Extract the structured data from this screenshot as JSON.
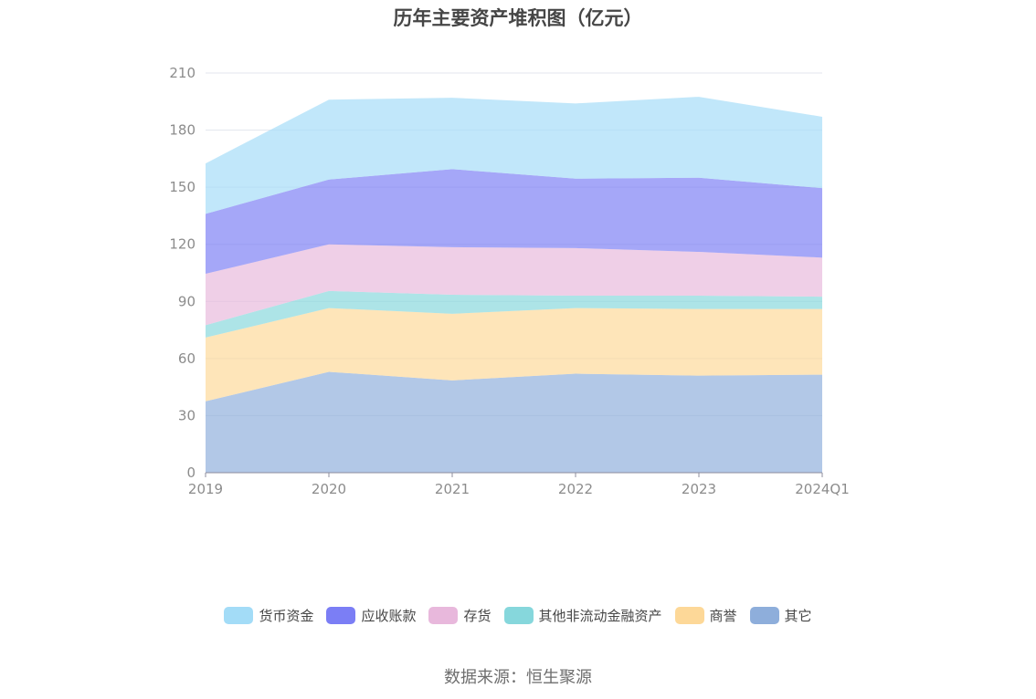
{
  "chart_data": {
    "type": "area",
    "stacked": true,
    "title": "历年主要资产堆积图（亿元）",
    "source": "数据来源：恒生聚源",
    "categories": [
      "2019",
      "2020",
      "2021",
      "2022",
      "2023",
      "2024Q1"
    ],
    "ylim": [
      0,
      210
    ],
    "yticks": [
      0,
      30,
      60,
      90,
      120,
      150,
      180,
      210
    ],
    "grid": true,
    "legend_position": "bottom",
    "series": [
      {
        "name": "其它",
        "color": "#8eaedb",
        "values": [
          37.5,
          53,
          48.5,
          52,
          51,
          51.5
        ]
      },
      {
        "name": "商誉",
        "color": "#fdd898",
        "values": [
          33.5,
          33.5,
          35,
          34.5,
          35,
          34.5
        ]
      },
      {
        "name": "其他非流动金融资产",
        "color": "#86d7dc",
        "values": [
          6.5,
          9,
          10,
          6.5,
          7,
          6.5
        ]
      },
      {
        "name": "存货",
        "color": "#e8b8dc",
        "values": [
          27,
          24.5,
          25,
          25,
          23,
          20.5
        ]
      },
      {
        "name": "应收账款",
        "color": "#7b7ef5",
        "values": [
          31.5,
          34,
          41,
          36.5,
          39,
          36.5
        ]
      },
      {
        "name": "货币资金",
        "color": "#a3dcf7",
        "values": [
          26.5,
          42,
          37.5,
          39.5,
          42.5,
          37.5
        ]
      }
    ]
  },
  "legend_order": [
    "货币资金",
    "应收账款",
    "存货",
    "其他非流动金融资产",
    "商誉",
    "其它"
  ]
}
